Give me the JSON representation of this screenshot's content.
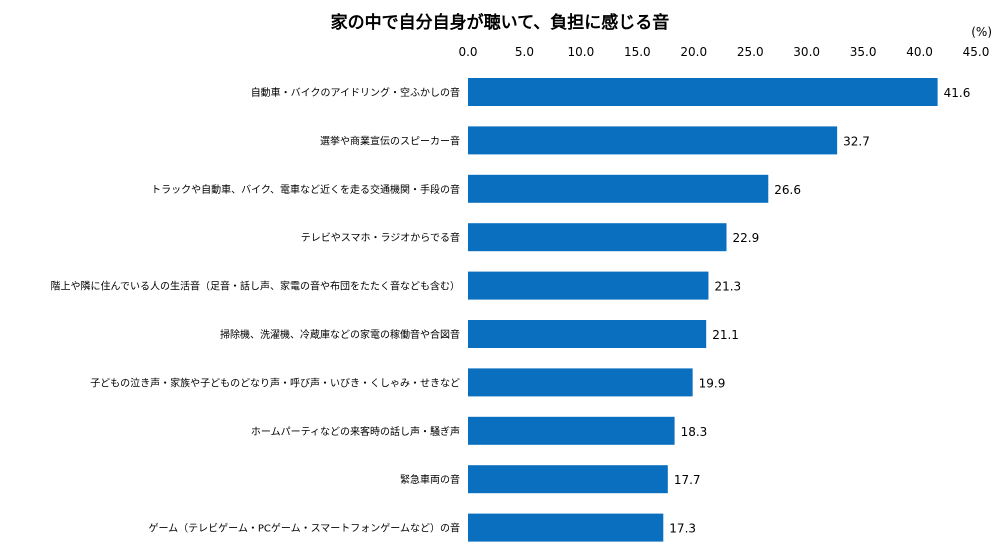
{
  "chart_data": {
    "type": "bar",
    "orientation": "horizontal",
    "title": "家の中で自分自身が聴いて、負担に感じる音",
    "unit_label": "(%)",
    "xlim": [
      0,
      45
    ],
    "ticks": [
      "0.0",
      "5.0",
      "10.0",
      "15.0",
      "20.0",
      "25.0",
      "30.0",
      "35.0",
      "40.0",
      "45.0"
    ],
    "tick_values": [
      0,
      5,
      10,
      15,
      20,
      25,
      30,
      35,
      40,
      45
    ],
    "bar_color": "#0B6FBF",
    "categories": [
      "自動車・バイクのアイドリング・空ふかしの音",
      "選挙や商業宣伝のスピーカー音",
      "トラックや自動車、バイク、電車など近くを走る交通機関・手段の音",
      "テレビやスマホ・ラジオからでる音",
      "階上や隣に住んでいる人の生活音（足音・話し声、家電の音や布団をたたく音なども含む）",
      "掃除機、洗濯機、冷蔵庫などの家電の稼働音や合図音",
      "子どもの泣き声・家族や子どものどなり声・呼び声・いびき・くしゃみ・せきなど",
      "ホームパーティなどの来客時の話し声・騒ぎ声",
      "緊急車両の音",
      "ゲーム（テレビゲーム・PCゲーム・スマートフォンゲームなど）の音"
    ],
    "values": [
      41.6,
      32.7,
      26.6,
      22.9,
      21.3,
      21.1,
      19.9,
      18.3,
      17.7,
      17.3
    ],
    "value_labels": [
      "41.6",
      "32.7",
      "26.6",
      "22.9",
      "21.3",
      "21.1",
      "19.9",
      "18.3",
      "17.7",
      "17.3"
    ]
  }
}
